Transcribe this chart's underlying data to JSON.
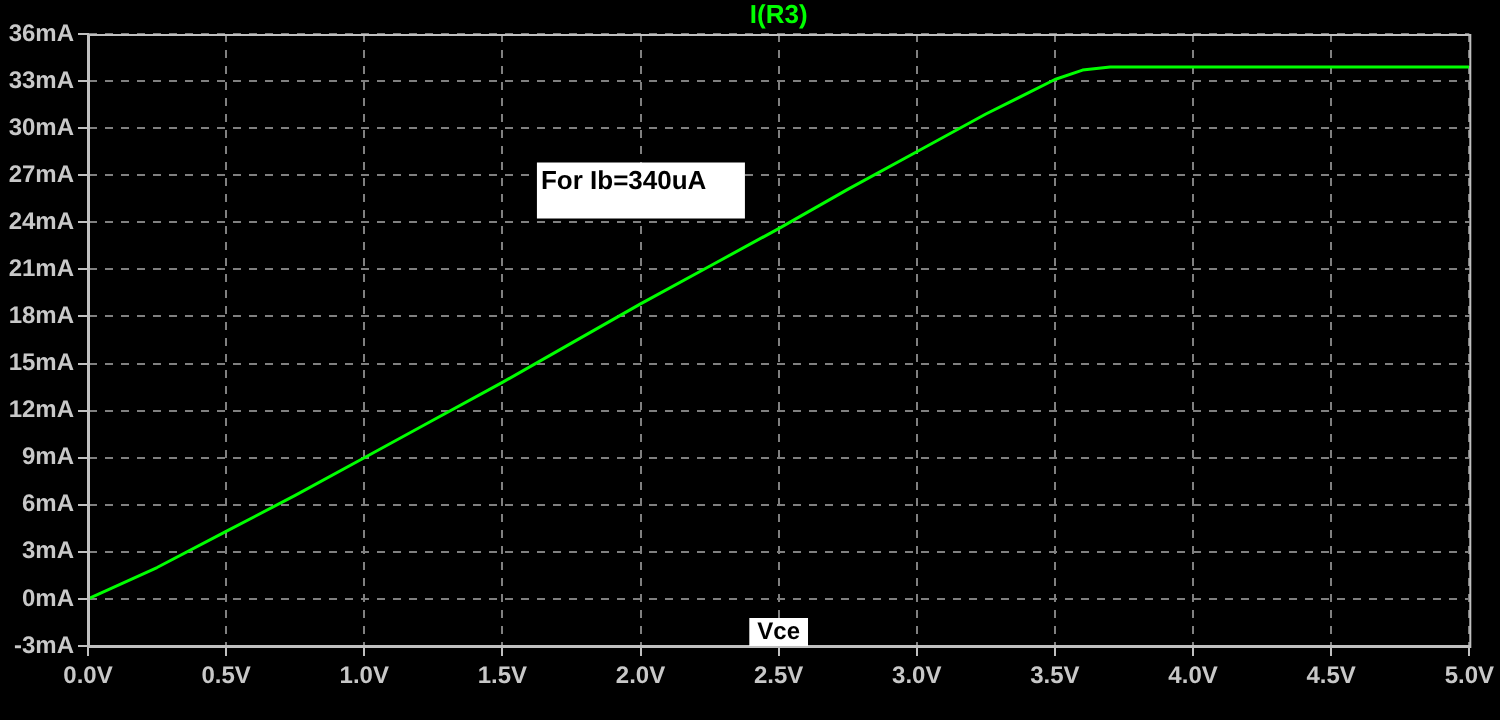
{
  "chart_data": {
    "type": "line",
    "xlabel": "Vce",
    "annotations": [
      "For Ib=340uA"
    ],
    "legend": "top",
    "grid": true,
    "marker": "none",
    "line_style": "solid",
    "xlim": [
      0,
      5
    ],
    "ylim": [
      -3,
      36
    ],
    "xticks": [
      {
        "value": 0,
        "label": "0.0V"
      },
      {
        "value": 0.5,
        "label": "0.5V"
      },
      {
        "value": 1,
        "label": "1.0V"
      },
      {
        "value": 1.5,
        "label": "1.5V"
      },
      {
        "value": 2,
        "label": "2.0V"
      },
      {
        "value": 2.5,
        "label": "2.5V"
      },
      {
        "value": 3,
        "label": "3.0V"
      },
      {
        "value": 3.5,
        "label": "3.5V"
      },
      {
        "value": 4,
        "label": "4.0V"
      },
      {
        "value": 4.5,
        "label": "4.5V"
      },
      {
        "value": 5,
        "label": "5.0V"
      }
    ],
    "yticks": [
      {
        "value": -3,
        "label": "-3mA"
      },
      {
        "value": 0,
        "label": "0mA"
      },
      {
        "value": 3,
        "label": "3mA"
      },
      {
        "value": 6,
        "label": "6mA"
      },
      {
        "value": 9,
        "label": "9mA"
      },
      {
        "value": 12,
        "label": "12mA"
      },
      {
        "value": 15,
        "label": "15mA"
      },
      {
        "value": 18,
        "label": "18mA"
      },
      {
        "value": 21,
        "label": "21mA"
      },
      {
        "value": 24,
        "label": "24mA"
      },
      {
        "value": 27,
        "label": "27mA"
      },
      {
        "value": 30,
        "label": "30mA"
      },
      {
        "value": 33,
        "label": "33mA"
      },
      {
        "value": 36,
        "label": "36mA"
      }
    ],
    "series": [
      {
        "name": "I(R3)",
        "color": "#00ff00",
        "x": [
          0,
          0.25,
          0.5,
          0.75,
          1,
          1.25,
          1.5,
          1.75,
          2,
          2.25,
          2.5,
          2.75,
          3,
          3.25,
          3.5,
          3.6,
          3.7,
          5
        ],
        "values": [
          0,
          2.0,
          4.3,
          6.6,
          9.0,
          11.4,
          13.8,
          16.3,
          18.8,
          21.2,
          23.6,
          26.1,
          28.5,
          30.9,
          33.1,
          33.7,
          33.9,
          33.9
        ]
      }
    ]
  }
}
